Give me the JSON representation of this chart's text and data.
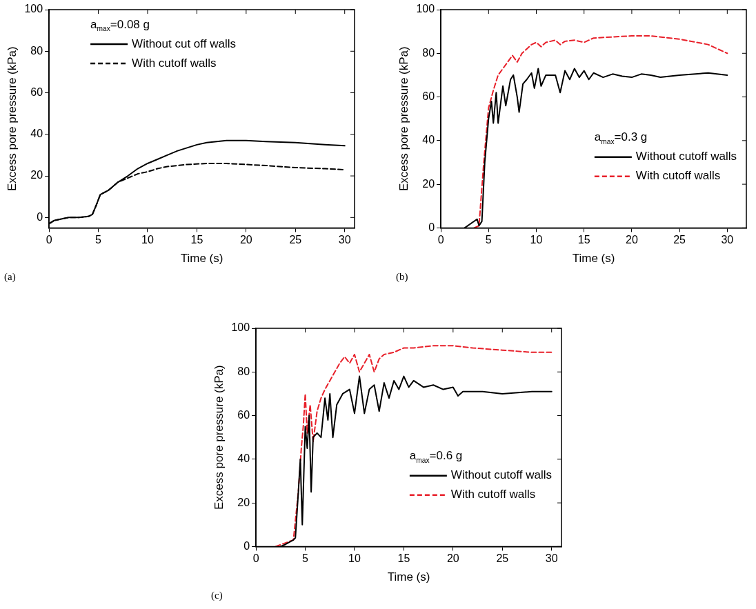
{
  "chart_data": [
    {
      "type": "line",
      "xlabel": "Time (s)",
      "ylabel": "Excess pore pressure (kPa)",
      "annotations": [
        "a$_{max}$=0.08 g",
        "(a)"
      ],
      "xlim": [
        0,
        31
      ],
      "xticks": [
        0,
        5,
        10,
        15,
        20,
        25,
        30
      ],
      "ylim": [
        -5,
        100
      ],
      "yticks": [
        0,
        20,
        40,
        60,
        80,
        100
      ],
      "legend": "top left",
      "grid": false,
      "marker": "none",
      "series": [
        {
          "name": "Without cut off walls",
          "color": "#000000",
          "line_style": "solid",
          "x": [
            0,
            0.5,
            1,
            2,
            3,
            4,
            4.4,
            4.8,
            5.2,
            6,
            7,
            8,
            9,
            10,
            11,
            12,
            13,
            14,
            15,
            16,
            18,
            20,
            22,
            25,
            28,
            30
          ],
          "values": [
            -3,
            -1.5,
            -1,
            0,
            0,
            0.5,
            1.5,
            6,
            11,
            13,
            17,
            20,
            23.5,
            26,
            28,
            30,
            32,
            33.5,
            35,
            36,
            37,
            37,
            36.5,
            36,
            35,
            34.5
          ]
        },
        {
          "name": "With cutoff walls",
          "color": "#000000",
          "line_style": "dashed",
          "x": [
            0,
            0.5,
            1,
            2,
            3,
            4,
            4.4,
            4.8,
            5.2,
            6,
            7,
            8,
            9,
            10,
            11,
            12,
            14,
            16,
            18,
            20,
            22,
            25,
            28,
            30
          ],
          "values": [
            -3,
            -1.5,
            -1,
            0,
            0,
            0.5,
            1.5,
            6,
            11,
            13,
            17,
            19,
            21,
            22,
            23.5,
            24.5,
            25.5,
            26,
            26,
            25.5,
            25,
            24,
            23.5,
            23
          ]
        }
      ]
    },
    {
      "type": "line",
      "xlabel": "Time (s)",
      "ylabel": "Excess pore pressure (kPa)",
      "annotations": [
        "a$_{max}$=0.3 g",
        "(b)"
      ],
      "xlim": [
        0,
        32
      ],
      "xticks": [
        0,
        5,
        10,
        15,
        20,
        25,
        30
      ],
      "ylim": [
        0,
        100
      ],
      "yticks": [
        0,
        20,
        40,
        60,
        80,
        100
      ],
      "legend": "right",
      "grid": false,
      "marker": "none",
      "series": [
        {
          "name": "Without cutoff walls",
          "color": "#000000",
          "line_style": "solid",
          "x": [
            2.5,
            3.8,
            4,
            4.3,
            4.6,
            5,
            5.3,
            5.5,
            5.8,
            6,
            6.5,
            6.8,
            7.3,
            7.6,
            8,
            8.2,
            8.6,
            9,
            9.5,
            9.8,
            10.2,
            10.5,
            11,
            11.5,
            12,
            12.5,
            13,
            13.5,
            14,
            14.5,
            15,
            15.5,
            16,
            17,
            18,
            19,
            20,
            21,
            22,
            23,
            25,
            28,
            30
          ],
          "values": [
            0,
            4,
            1,
            3,
            30,
            50,
            58,
            48,
            62,
            48,
            65,
            56,
            68,
            70,
            60,
            53,
            66,
            68,
            71,
            64,
            73,
            65,
            70,
            70,
            70,
            62,
            72,
            68,
            73,
            69,
            72,
            68,
            71,
            69,
            70.5,
            69.5,
            69,
            70.5,
            70,
            69,
            70,
            71,
            70
          ]
        },
        {
          "name": "With cutoff walls",
          "color": "#e8202a",
          "line_style": "dashed",
          "x": [
            3.5,
            4,
            4.5,
            5,
            5.5,
            6,
            6.5,
            7,
            7.5,
            8,
            8.5,
            9,
            9.5,
            10,
            10.5,
            11,
            12,
            12.5,
            13,
            14,
            15,
            16,
            18,
            20,
            22,
            25,
            28,
            30
          ],
          "values": [
            0,
            1,
            30,
            55,
            63,
            70,
            73,
            76,
            79,
            76,
            80,
            82,
            84,
            85,
            83,
            85,
            86,
            84,
            85.5,
            86,
            85,
            87,
            87.5,
            88,
            88,
            86.5,
            84,
            80
          ]
        }
      ]
    },
    {
      "type": "line",
      "xlabel": "Time (s)",
      "ylabel": "Excess pore pressure (kPa)",
      "annotations": [
        "a$_{max}$=0.6 g",
        "(c)"
      ],
      "xlim": [
        0,
        31
      ],
      "xticks": [
        0,
        5,
        10,
        15,
        20,
        25,
        30
      ],
      "ylim": [
        0,
        100
      ],
      "yticks": [
        0,
        20,
        40,
        60,
        80,
        100
      ],
      "legend": "right",
      "grid": false,
      "marker": "none",
      "series": [
        {
          "name": "Without cutoff walls",
          "color": "#000000",
          "line_style": "solid",
          "x": [
            2.5,
            3,
            3.8,
            4,
            4.3,
            4.5,
            4.7,
            4.9,
            5,
            5.2,
            5.4,
            5.6,
            5.8,
            6.2,
            6.6,
            7,
            7.3,
            7.5,
            7.8,
            8.2,
            8.8,
            9.5,
            10,
            10.5,
            11,
            11.5,
            12,
            12.5,
            13,
            13.5,
            14,
            14.5,
            15,
            15.5,
            16,
            17,
            18,
            19,
            20,
            20.5,
            21,
            23,
            25,
            28,
            30
          ],
          "values": [
            0,
            1,
            3,
            4,
            25,
            40,
            10,
            40,
            55,
            45,
            60,
            25,
            50,
            52,
            50,
            68,
            58,
            70,
            50,
            65,
            70,
            72,
            61,
            78,
            61,
            72,
            74,
            62,
            75,
            68,
            76,
            72,
            78,
            73,
            76,
            73,
            74,
            72,
            73,
            69,
            71,
            71,
            70,
            71,
            71
          ]
        },
        {
          "name": "With cutoff walls",
          "color": "#e8202a",
          "line_style": "dashed",
          "x": [
            2,
            3.8,
            4.3,
            4.6,
            4.8,
            5,
            5.2,
            5.5,
            5.8,
            6.2,
            6.6,
            7,
            7.5,
            8,
            8.5,
            9,
            9.5,
            10,
            10.5,
            11,
            11.5,
            12,
            12.5,
            13,
            14,
            15,
            16,
            18,
            20,
            22,
            25,
            28,
            30
          ],
          "values": [
            0,
            3,
            25,
            45,
            55,
            70,
            52,
            65,
            48,
            62,
            68,
            72,
            76,
            80,
            84,
            87,
            84,
            88,
            80,
            84,
            88,
            80,
            86,
            88,
            89,
            91,
            91,
            92,
            92,
            91,
            90,
            89,
            89
          ]
        }
      ]
    }
  ]
}
